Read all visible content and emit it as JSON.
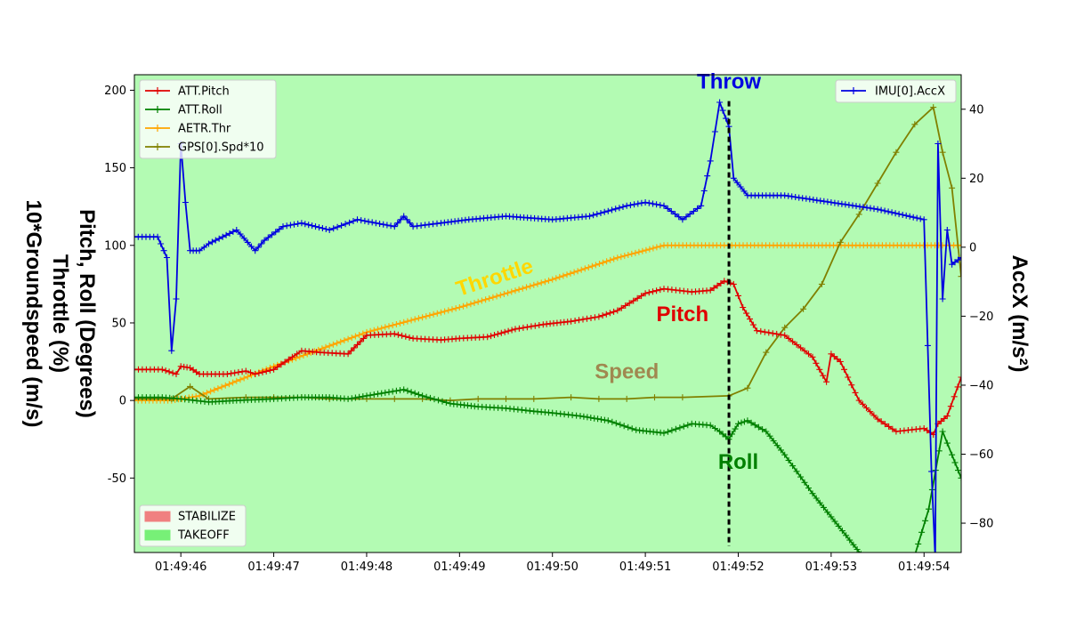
{
  "chart_data": {
    "type": "line",
    "title": "",
    "colors": {
      "background": "#b3fbb3",
      "pitch": "#e00000",
      "roll": "#008000",
      "throttle": "#ffa500",
      "speed": "#808000",
      "accx": "#0000e0",
      "stabilize": "#f08080",
      "takeoff": "#77f077"
    },
    "x_ticks": [
      "01:49:46",
      "01:49:47",
      "01:49:48",
      "01:49:49",
      "01:49:50",
      "01:49:51",
      "01:49:52",
      "01:49:53",
      "01:49:54"
    ],
    "xlim_seconds": [
      45.5,
      54.4
    ],
    "left_axis": {
      "label_lines": [
        "Pitch, Roll (Degrees)",
        "Throttle (%)",
        "10*Groundspeed (m/s)"
      ],
      "ylim": [
        -98,
        210
      ],
      "ticks": [
        -50,
        0,
        50,
        100,
        150,
        200
      ]
    },
    "right_axis": {
      "label": "AccX (m/s²)",
      "ylim": [
        -88.5,
        50
      ],
      "ticks": [
        -80,
        -60,
        -40,
        -20,
        0,
        20,
        40
      ]
    },
    "legend_left": {
      "position": "upper left",
      "entries": [
        "ATT.Pitch",
        "ATT.Roll",
        "AETR.Thr",
        "GPS[0].Spd*10"
      ]
    },
    "legend_right": {
      "position": "upper right",
      "entries": [
        "IMU[0].AccX"
      ]
    },
    "mode_legend": {
      "position": "lower left",
      "entries": [
        {
          "label": "STABILIZE",
          "color": "#f08080"
        },
        {
          "label": "TAKEOFF",
          "color": "#77f077"
        }
      ]
    },
    "series": [
      {
        "name": "ATT.Pitch",
        "axis": "left",
        "color": "#e00000",
        "points": [
          [
            45.5,
            20
          ],
          [
            45.8,
            20
          ],
          [
            45.95,
            17
          ],
          [
            46.0,
            22
          ],
          [
            46.1,
            21
          ],
          [
            46.2,
            17
          ],
          [
            46.5,
            17
          ],
          [
            46.7,
            19
          ],
          [
            46.8,
            17
          ],
          [
            47.0,
            20
          ],
          [
            47.2,
            28
          ],
          [
            47.3,
            32
          ],
          [
            47.5,
            31
          ],
          [
            47.8,
            30
          ],
          [
            47.9,
            36
          ],
          [
            48.0,
            42
          ],
          [
            48.3,
            43
          ],
          [
            48.5,
            40
          ],
          [
            48.8,
            39
          ],
          [
            49.0,
            40
          ],
          [
            49.3,
            41
          ],
          [
            49.6,
            46
          ],
          [
            49.9,
            49
          ],
          [
            50.2,
            51
          ],
          [
            50.5,
            54
          ],
          [
            50.7,
            58
          ],
          [
            51.0,
            69
          ],
          [
            51.2,
            72
          ],
          [
            51.5,
            70
          ],
          [
            51.7,
            71
          ],
          [
            51.85,
            77
          ],
          [
            51.95,
            75
          ],
          [
            52.05,
            60
          ],
          [
            52.2,
            45
          ],
          [
            52.5,
            42
          ],
          [
            52.8,
            28
          ],
          [
            52.95,
            12
          ],
          [
            53.0,
            30
          ],
          [
            53.1,
            25
          ],
          [
            53.3,
            0
          ],
          [
            53.5,
            -12
          ],
          [
            53.7,
            -20
          ],
          [
            54.0,
            -18
          ],
          [
            54.1,
            -22
          ],
          [
            54.15,
            -15
          ],
          [
            54.25,
            -10
          ],
          [
            54.4,
            15
          ]
        ]
      },
      {
        "name": "ATT.Roll",
        "axis": "left",
        "color": "#008000",
        "points": [
          [
            45.5,
            2
          ],
          [
            45.8,
            2
          ],
          [
            46.0,
            1
          ],
          [
            46.3,
            -1
          ],
          [
            46.6,
            0
          ],
          [
            47.0,
            1
          ],
          [
            47.3,
            2
          ],
          [
            47.6,
            2
          ],
          [
            47.8,
            1
          ],
          [
            48.0,
            3
          ],
          [
            48.4,
            7
          ],
          [
            48.6,
            3
          ],
          [
            48.9,
            -2
          ],
          [
            49.2,
            -4
          ],
          [
            49.5,
            -5
          ],
          [
            49.8,
            -7
          ],
          [
            50.0,
            -8
          ],
          [
            50.3,
            -10
          ],
          [
            50.6,
            -13
          ],
          [
            50.9,
            -19
          ],
          [
            51.2,
            -21
          ],
          [
            51.5,
            -15
          ],
          [
            51.7,
            -16
          ],
          [
            51.8,
            -20
          ],
          [
            51.9,
            -25
          ],
          [
            52.0,
            -15
          ],
          [
            52.1,
            -13
          ],
          [
            52.3,
            -20
          ],
          [
            52.5,
            -35
          ],
          [
            52.8,
            -60
          ],
          [
            53.0,
            -75
          ],
          [
            53.2,
            -90
          ],
          [
            53.4,
            -105
          ],
          [
            53.7,
            -120
          ],
          [
            53.9,
            -100
          ],
          [
            54.05,
            -70
          ],
          [
            54.2,
            -20
          ],
          [
            54.3,
            -35
          ],
          [
            54.4,
            -50
          ]
        ]
      },
      {
        "name": "AETR.Thr",
        "axis": "left",
        "color": "#ffa500",
        "points": [
          [
            45.5,
            0
          ],
          [
            45.9,
            0
          ],
          [
            46.2,
            3
          ],
          [
            47.0,
            22
          ],
          [
            48.0,
            44
          ],
          [
            49.0,
            60
          ],
          [
            50.0,
            78
          ],
          [
            50.7,
            92
          ],
          [
            51.2,
            100
          ],
          [
            52.5,
            100
          ],
          [
            54.4,
            100
          ]
        ]
      },
      {
        "name": "GPS[0].Spd*10",
        "axis": "left",
        "color": "#808000",
        "points": [
          [
            45.5,
            1
          ],
          [
            45.9,
            1
          ],
          [
            46.1,
            9
          ],
          [
            46.3,
            1
          ],
          [
            46.7,
            2
          ],
          [
            47.0,
            2
          ],
          [
            47.3,
            2
          ],
          [
            47.6,
            1
          ],
          [
            48.0,
            1
          ],
          [
            48.3,
            1
          ],
          [
            48.6,
            1
          ],
          [
            48.9,
            0
          ],
          [
            49.2,
            1
          ],
          [
            49.5,
            1
          ],
          [
            49.8,
            1
          ],
          [
            50.2,
            2
          ],
          [
            50.5,
            1
          ],
          [
            50.8,
            1
          ],
          [
            51.1,
            2
          ],
          [
            51.4,
            2
          ],
          [
            51.9,
            3
          ],
          [
            52.1,
            8
          ],
          [
            52.3,
            31
          ],
          [
            52.5,
            47
          ],
          [
            52.7,
            59
          ],
          [
            52.9,
            75
          ],
          [
            53.1,
            102
          ],
          [
            53.3,
            120
          ],
          [
            53.5,
            140
          ],
          [
            53.7,
            160
          ],
          [
            53.9,
            178
          ],
          [
            54.1,
            189
          ],
          [
            54.2,
            160
          ],
          [
            54.3,
            137
          ],
          [
            54.4,
            80
          ]
        ]
      },
      {
        "name": "IMU[0].AccX",
        "axis": "right",
        "color": "#0000e0",
        "points": [
          [
            45.5,
            3
          ],
          [
            45.75,
            3
          ],
          [
            45.85,
            -3
          ],
          [
            45.9,
            -30
          ],
          [
            45.95,
            -15
          ],
          [
            46.0,
            30
          ],
          [
            46.05,
            13
          ],
          [
            46.1,
            -1
          ],
          [
            46.2,
            -1
          ],
          [
            46.3,
            1
          ],
          [
            46.6,
            5
          ],
          [
            46.8,
            -1
          ],
          [
            46.9,
            2
          ],
          [
            47.1,
            6
          ],
          [
            47.3,
            7
          ],
          [
            47.6,
            5
          ],
          [
            47.9,
            8
          ],
          [
            48.1,
            7
          ],
          [
            48.3,
            6
          ],
          [
            48.4,
            9
          ],
          [
            48.5,
            6
          ],
          [
            48.8,
            7
          ],
          [
            49.1,
            8
          ],
          [
            49.5,
            9
          ],
          [
            50.0,
            8
          ],
          [
            50.4,
            9
          ],
          [
            50.8,
            12
          ],
          [
            51.0,
            13
          ],
          [
            51.2,
            12
          ],
          [
            51.4,
            8
          ],
          [
            51.6,
            12
          ],
          [
            51.7,
            25
          ],
          [
            51.8,
            42
          ],
          [
            51.9,
            35
          ],
          [
            51.95,
            20
          ],
          [
            52.1,
            15
          ],
          [
            52.5,
            15
          ],
          [
            53.0,
            13
          ],
          [
            53.5,
            11
          ],
          [
            54.0,
            8
          ],
          [
            54.08,
            -65
          ],
          [
            54.12,
            -90
          ],
          [
            54.15,
            30
          ],
          [
            54.2,
            -15
          ],
          [
            54.25,
            5
          ],
          [
            54.3,
            -5
          ],
          [
            54.4,
            -3
          ]
        ]
      }
    ],
    "annotations": [
      {
        "text": "Throw",
        "color": "#0000e0",
        "x": 51.9,
        "y": 201,
        "axis": "left"
      },
      {
        "text": "Throttle",
        "color": "#ffd700",
        "x": 49.4,
        "y": 75,
        "axis": "left",
        "rotate": -18
      },
      {
        "text": "Pitch",
        "color": "#e00000",
        "x": 51.4,
        "y": 51,
        "axis": "left"
      },
      {
        "text": "Speed",
        "color": "#a08850",
        "x": 50.8,
        "y": 14,
        "axis": "left"
      },
      {
        "text": "Roll",
        "color": "#008000",
        "x": 52.0,
        "y": -44,
        "axis": "left"
      }
    ],
    "throw_marker": {
      "x": 51.9,
      "y_top": 193,
      "y_bottom": -94,
      "style": "dashed"
    },
    "grid": false
  }
}
